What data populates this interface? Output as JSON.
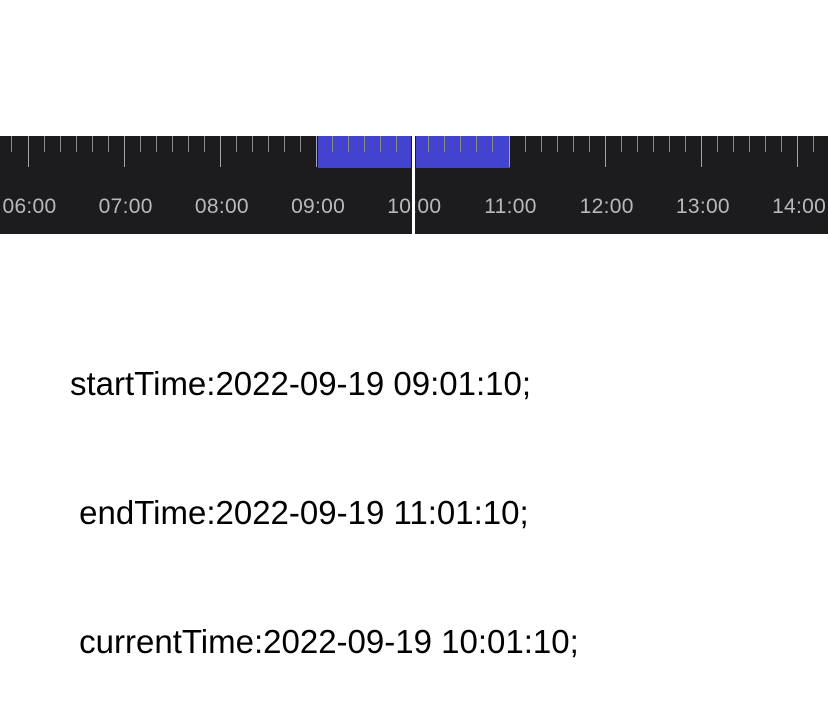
{
  "timeline": {
    "hour_labels": [
      "06:00",
      "07:00",
      "08:00",
      "09:00",
      "10:00",
      "11:00",
      "12:00",
      "13:00",
      "14:00"
    ],
    "selection_start": "09:01:10",
    "selection_end": "11:01:10",
    "current": "10:01:10",
    "selection_color": "#4343d0",
    "background_color": "#1c1c1f",
    "cursor_color": "#ffffff"
  },
  "info": {
    "start_line": "startTime:2022-09-19 09:01:10;",
    "end_line": " endTime:2022-09-19 11:01:10;",
    "current_line": " currentTime:2022-09-19 10:01:10;"
  }
}
